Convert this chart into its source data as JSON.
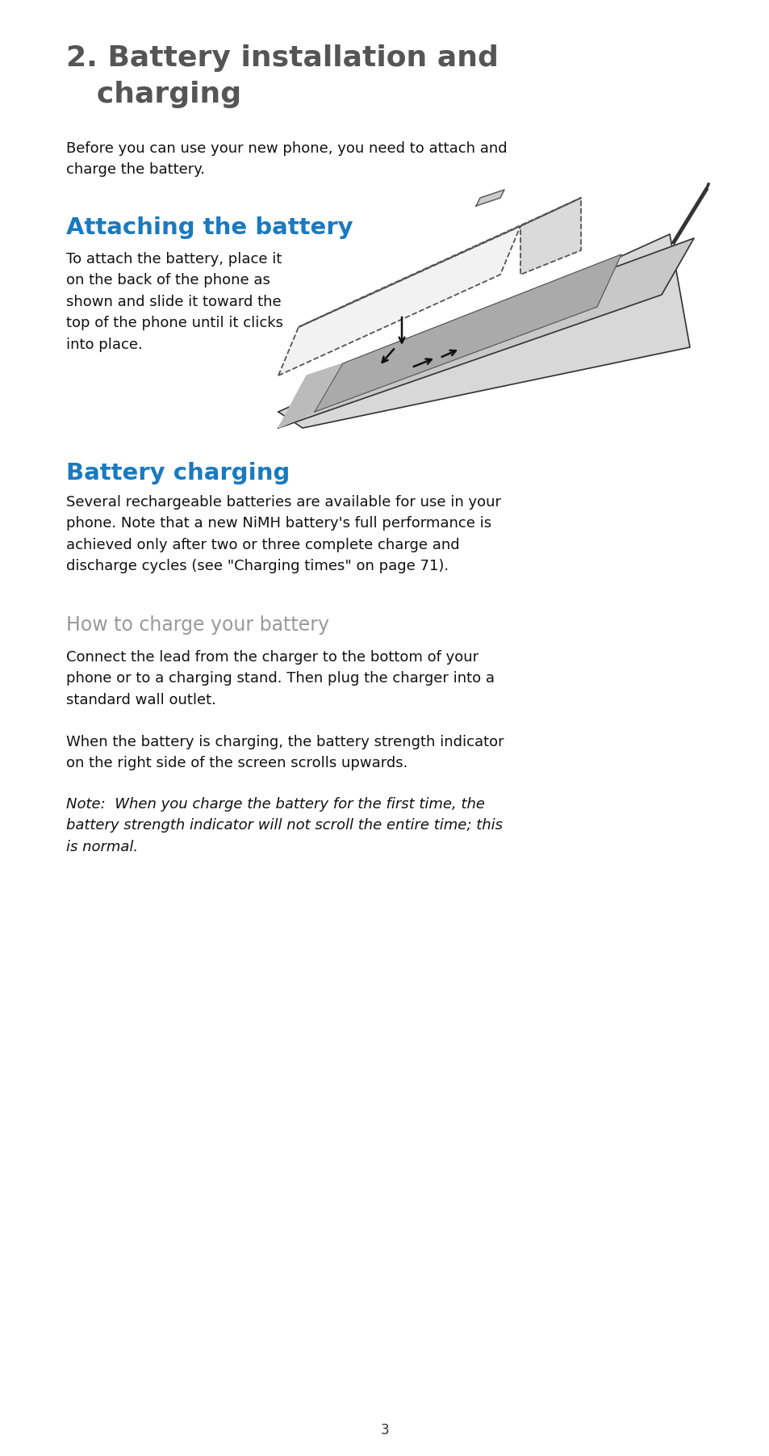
{
  "bg_color": "#ffffff",
  "title_line1": "2. Battery installation and",
  "title_line2": "   charging",
  "title_color": "#555555",
  "title_fontsize": 26,
  "intro_text": "Before you can use your new phone, you need to attach and\ncharge the battery.",
  "section1_heading": "Attaching the battery",
  "section1_heading_color": "#1a7abf",
  "section1_heading_fontsize": 21,
  "section1_text": "To attach the battery, place it\non the back of the phone as\nshown and slide it toward the\ntop of the phone until it clicks\ninto place.",
  "section2_heading": "Battery charging",
  "section2_heading_color": "#1a7abf",
  "section2_heading_fontsize": 21,
  "section2_text": "Several rechargeable batteries are available for use in your\nphone. Note that a new NiMH battery's full performance is\nachieved only after two or three complete charge and\ndischarge cycles (see \"Charging times\" on page 71).",
  "section3_heading": "How to charge your battery",
  "section3_heading_color": "#999999",
  "section3_heading_fontsize": 17,
  "section3_text1": "Connect the lead from the charger to the bottom of your\nphone or to a charging stand. Then plug the charger into a\nstandard wall outlet.",
  "section3_text2": "When the battery is charging, the battery strength indicator\non the right side of the screen scrolls upwards.",
  "section3_text3_normal": "Note:  ",
  "section3_text3_italic": "When you charge the battery for the first time, the\nbattery strength indicator will not scroll the entire time; this\nis normal.",
  "page_number": "3",
  "body_fontsize": 13,
  "body_color": "#111111"
}
